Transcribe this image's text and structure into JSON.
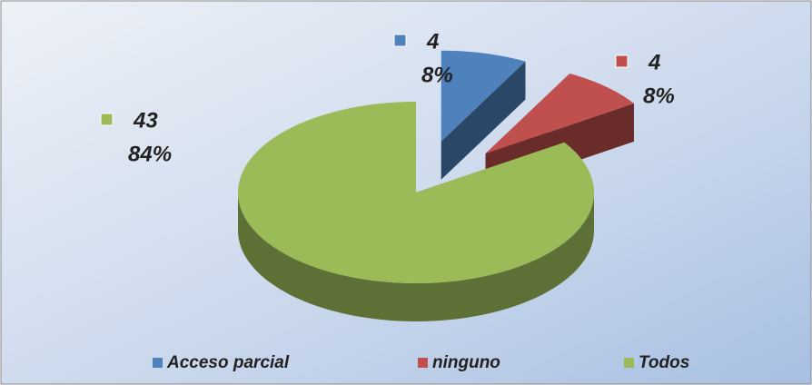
{
  "chart_data": {
    "type": "pie3d",
    "categories": [
      "Acceso parcial",
      "ninguno",
      "Todos"
    ],
    "values": [
      4,
      4,
      43
    ],
    "percent_labels": [
      "8%",
      "8%",
      "84%"
    ],
    "colors": [
      "#4f81bd",
      "#c0504d",
      "#9bbb59"
    ],
    "legend": "bottom"
  }
}
